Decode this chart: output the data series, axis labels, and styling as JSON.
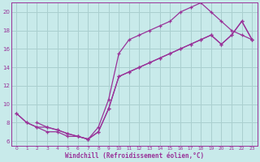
{
  "xlabel": "Windchill (Refroidissement éolien,°C)",
  "bg_color": "#c8eaea",
  "grid_color": "#aacfcf",
  "line_color": "#993399",
  "xlim": [
    -0.5,
    23.5
  ],
  "ylim": [
    5.5,
    21
  ],
  "xticks": [
    0,
    1,
    2,
    3,
    4,
    5,
    6,
    7,
    8,
    9,
    10,
    11,
    12,
    13,
    14,
    15,
    16,
    17,
    18,
    19,
    20,
    21,
    22,
    23
  ],
  "yticks": [
    6,
    8,
    10,
    12,
    14,
    16,
    18,
    20
  ],
  "curve1_x": [
    0,
    1,
    2,
    3,
    4,
    5,
    6,
    7,
    8,
    9,
    10,
    11,
    12,
    13,
    14,
    15,
    16,
    17,
    18,
    19,
    20,
    21,
    22,
    23
  ],
  "curve1_y": [
    9.0,
    8.0,
    7.5,
    7.0,
    7.0,
    6.5,
    6.5,
    6.2,
    7.5,
    10.5,
    15.5,
    17.0,
    17.5,
    18.0,
    18.5,
    19.0,
    20.0,
    20.5,
    21.0,
    20.0,
    19.0,
    18.0,
    17.5,
    17.0
  ],
  "curve2_x": [
    0,
    1,
    2,
    3,
    4,
    5,
    6,
    7,
    8,
    9,
    10,
    11,
    12,
    13,
    14,
    15,
    16,
    17,
    18,
    19,
    20,
    21,
    22,
    23
  ],
  "curve2_y": [
    9.0,
    8.0,
    7.5,
    7.5,
    7.2,
    6.8,
    6.5,
    6.2,
    7.0,
    9.5,
    13.0,
    13.5,
    14.0,
    14.5,
    15.0,
    15.5,
    16.0,
    16.5,
    17.0,
    17.5,
    16.5,
    17.5,
    19.0,
    17.0
  ],
  "curve3_x": [
    2,
    3,
    4,
    5,
    6,
    7,
    8,
    9,
    10,
    11,
    12,
    13,
    14,
    15,
    16,
    17,
    18,
    19,
    20,
    21,
    22,
    23
  ],
  "curve3_y": [
    8.0,
    7.5,
    7.2,
    6.8,
    6.5,
    6.2,
    7.0,
    9.5,
    13.0,
    13.5,
    14.0,
    14.5,
    15.0,
    15.5,
    16.0,
    16.5,
    17.0,
    17.5,
    16.5,
    17.5,
    19.0,
    17.0
  ]
}
